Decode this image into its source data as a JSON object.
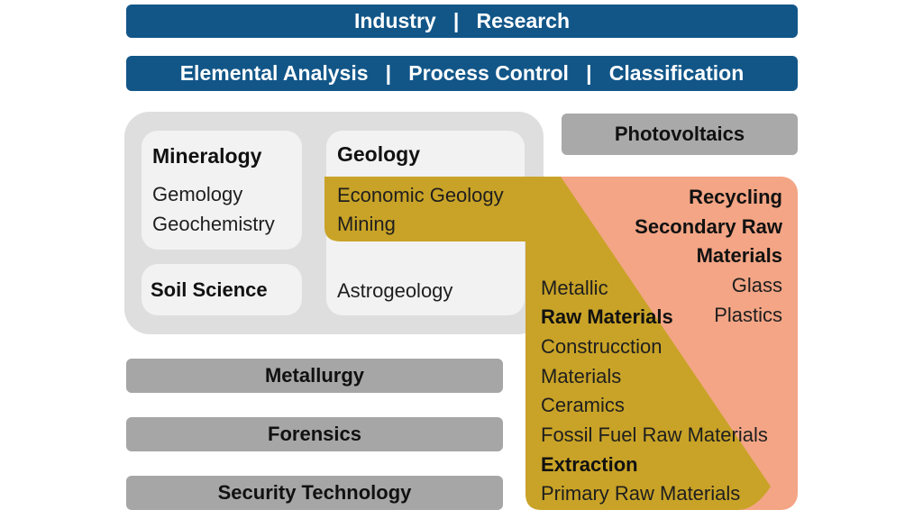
{
  "top_bar": {
    "text": "Industry   |   Research"
  },
  "second_bar": {
    "text": "Elemental Analysis   |   Process Control   |   Classification"
  },
  "mineralogy": {
    "title": "Mineralogy",
    "items": [
      "Gemology",
      "Geochemistry"
    ]
  },
  "soil_science": {
    "title": "Soil Science"
  },
  "geology": {
    "title": "Geology",
    "items": [
      "Economic Geology",
      "Mining",
      "Astrogeology"
    ]
  },
  "photovoltaics": {
    "title": "Photovoltaics"
  },
  "recycling": {
    "lines": [
      "Recycling",
      "Secondary Raw",
      "Materials"
    ],
    "items": [
      "Glass",
      "Plastics"
    ]
  },
  "raw_materials": {
    "metallic": "Metallic",
    "title": "Raw Materials",
    "items": [
      "Construcction",
      "Materials",
      "Ceramics",
      "Fossil Fuel Raw Materials"
    ]
  },
  "extraction": {
    "title": "Extraction",
    "items": [
      "Primary Raw Materials"
    ]
  },
  "bottom_boxes": {
    "metallurgy": "Metallurgy",
    "forensics": "Forensics",
    "security": "Security Technology"
  },
  "colors": {
    "header_blue": "#125688",
    "gold": "#c9a327",
    "orange": "#f3a585",
    "gray": "#a6a6a6",
    "light_gray": "#dedede"
  }
}
